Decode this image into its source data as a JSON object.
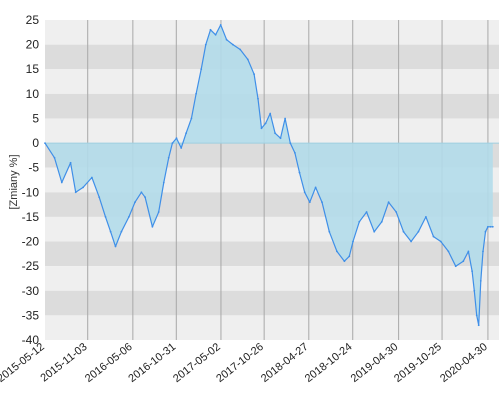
{
  "chart_data": {
    "type": "area",
    "title": "",
    "xlabel": "",
    "ylabel": "[Zmiany %]",
    "ylim": [
      -40,
      25
    ],
    "yticks": [
      25,
      20,
      15,
      10,
      5,
      0,
      -5,
      -10,
      -15,
      -20,
      -25,
      -30,
      -35,
      -40
    ],
    "grid": "horizontal bands and vertical lines",
    "colors": {
      "line": "#3f8fe8",
      "fill": "#b2dcea",
      "band_light": "#efefef",
      "band_dark": "#dcdcdc",
      "vgrid": "#a8a8a8"
    },
    "x_tick_labels": [
      "2015-05-12",
      "2015-11-03",
      "2016-05-06",
      "2016-10-31",
      "2017-05-02",
      "2017-10-26",
      "2018-04-27",
      "2018-10-24",
      "2019-04-30",
      "2019-10-25",
      "2020-04-30"
    ],
    "series": [
      {
        "dates": [
          "2015-05-12",
          "2015-06-20",
          "2015-07-20",
          "2015-08-25",
          "2015-09-15",
          "2015-10-15",
          "2015-11-20",
          "2015-12-20",
          "2016-01-15",
          "2016-02-05",
          "2016-02-25",
          "2016-03-20",
          "2016-04-20",
          "2016-05-15",
          "2016-06-10",
          "2016-06-25",
          "2016-07-25",
          "2016-08-20",
          "2016-09-10",
          "2016-09-30",
          "2016-10-15",
          "2016-11-01",
          "2016-11-20",
          "2016-12-10",
          "2017-01-01",
          "2017-01-20",
          "2017-02-10",
          "2017-03-01",
          "2017-03-20",
          "2017-04-10",
          "2017-05-01",
          "2017-05-25",
          "2017-06-20",
          "2017-07-20",
          "2017-08-20",
          "2017-09-15",
          "2017-10-01",
          "2017-10-15",
          "2017-11-01",
          "2017-11-20",
          "2017-12-10",
          "2018-01-01",
          "2018-01-20",
          "2018-02-10",
          "2018-03-01",
          "2018-03-20",
          "2018-04-10",
          "2018-05-01",
          "2018-05-25",
          "2018-06-20",
          "2018-07-20",
          "2018-08-20",
          "2018-09-20",
          "2018-10-10",
          "2018-10-25",
          "2018-11-20",
          "2018-12-20",
          "2019-01-20",
          "2019-02-20",
          "2019-03-20",
          "2019-04-20",
          "2019-05-20",
          "2019-06-20",
          "2019-07-20",
          "2019-08-20",
          "2019-09-20",
          "2019-10-20",
          "2019-11-20",
          "2019-12-20",
          "2020-01-20",
          "2020-02-10",
          "2020-02-25",
          "2020-03-05",
          "2020-03-15",
          "2020-03-23",
          "2020-04-01",
          "2020-04-10",
          "2020-04-20",
          "2020-04-30",
          "2020-05-10",
          "2020-05-20"
        ],
        "values": [
          0,
          -3,
          -8,
          -4,
          -10,
          -9,
          -7,
          -11,
          -15,
          -18,
          -21,
          -18,
          -15,
          -12,
          -10,
          -11,
          -17,
          -14,
          -8,
          -3,
          0,
          1,
          -1,
          2,
          5,
          10,
          15,
          20,
          23,
          22,
          24,
          21,
          20,
          19,
          17,
          14,
          9,
          3,
          4,
          6,
          2,
          1,
          5,
          0,
          -2,
          -6,
          -10,
          -12,
          -9,
          -12,
          -18,
          -22,
          -24,
          -23,
          -20,
          -16,
          -14,
          -18,
          -16,
          -12,
          -14,
          -18,
          -20,
          -18,
          -15,
          -19,
          -20,
          -22,
          -25,
          -24,
          -22,
          -26,
          -30,
          -35,
          -37,
          -28,
          -22,
          -18,
          -17,
          -17,
          -17
        ]
      }
    ]
  }
}
